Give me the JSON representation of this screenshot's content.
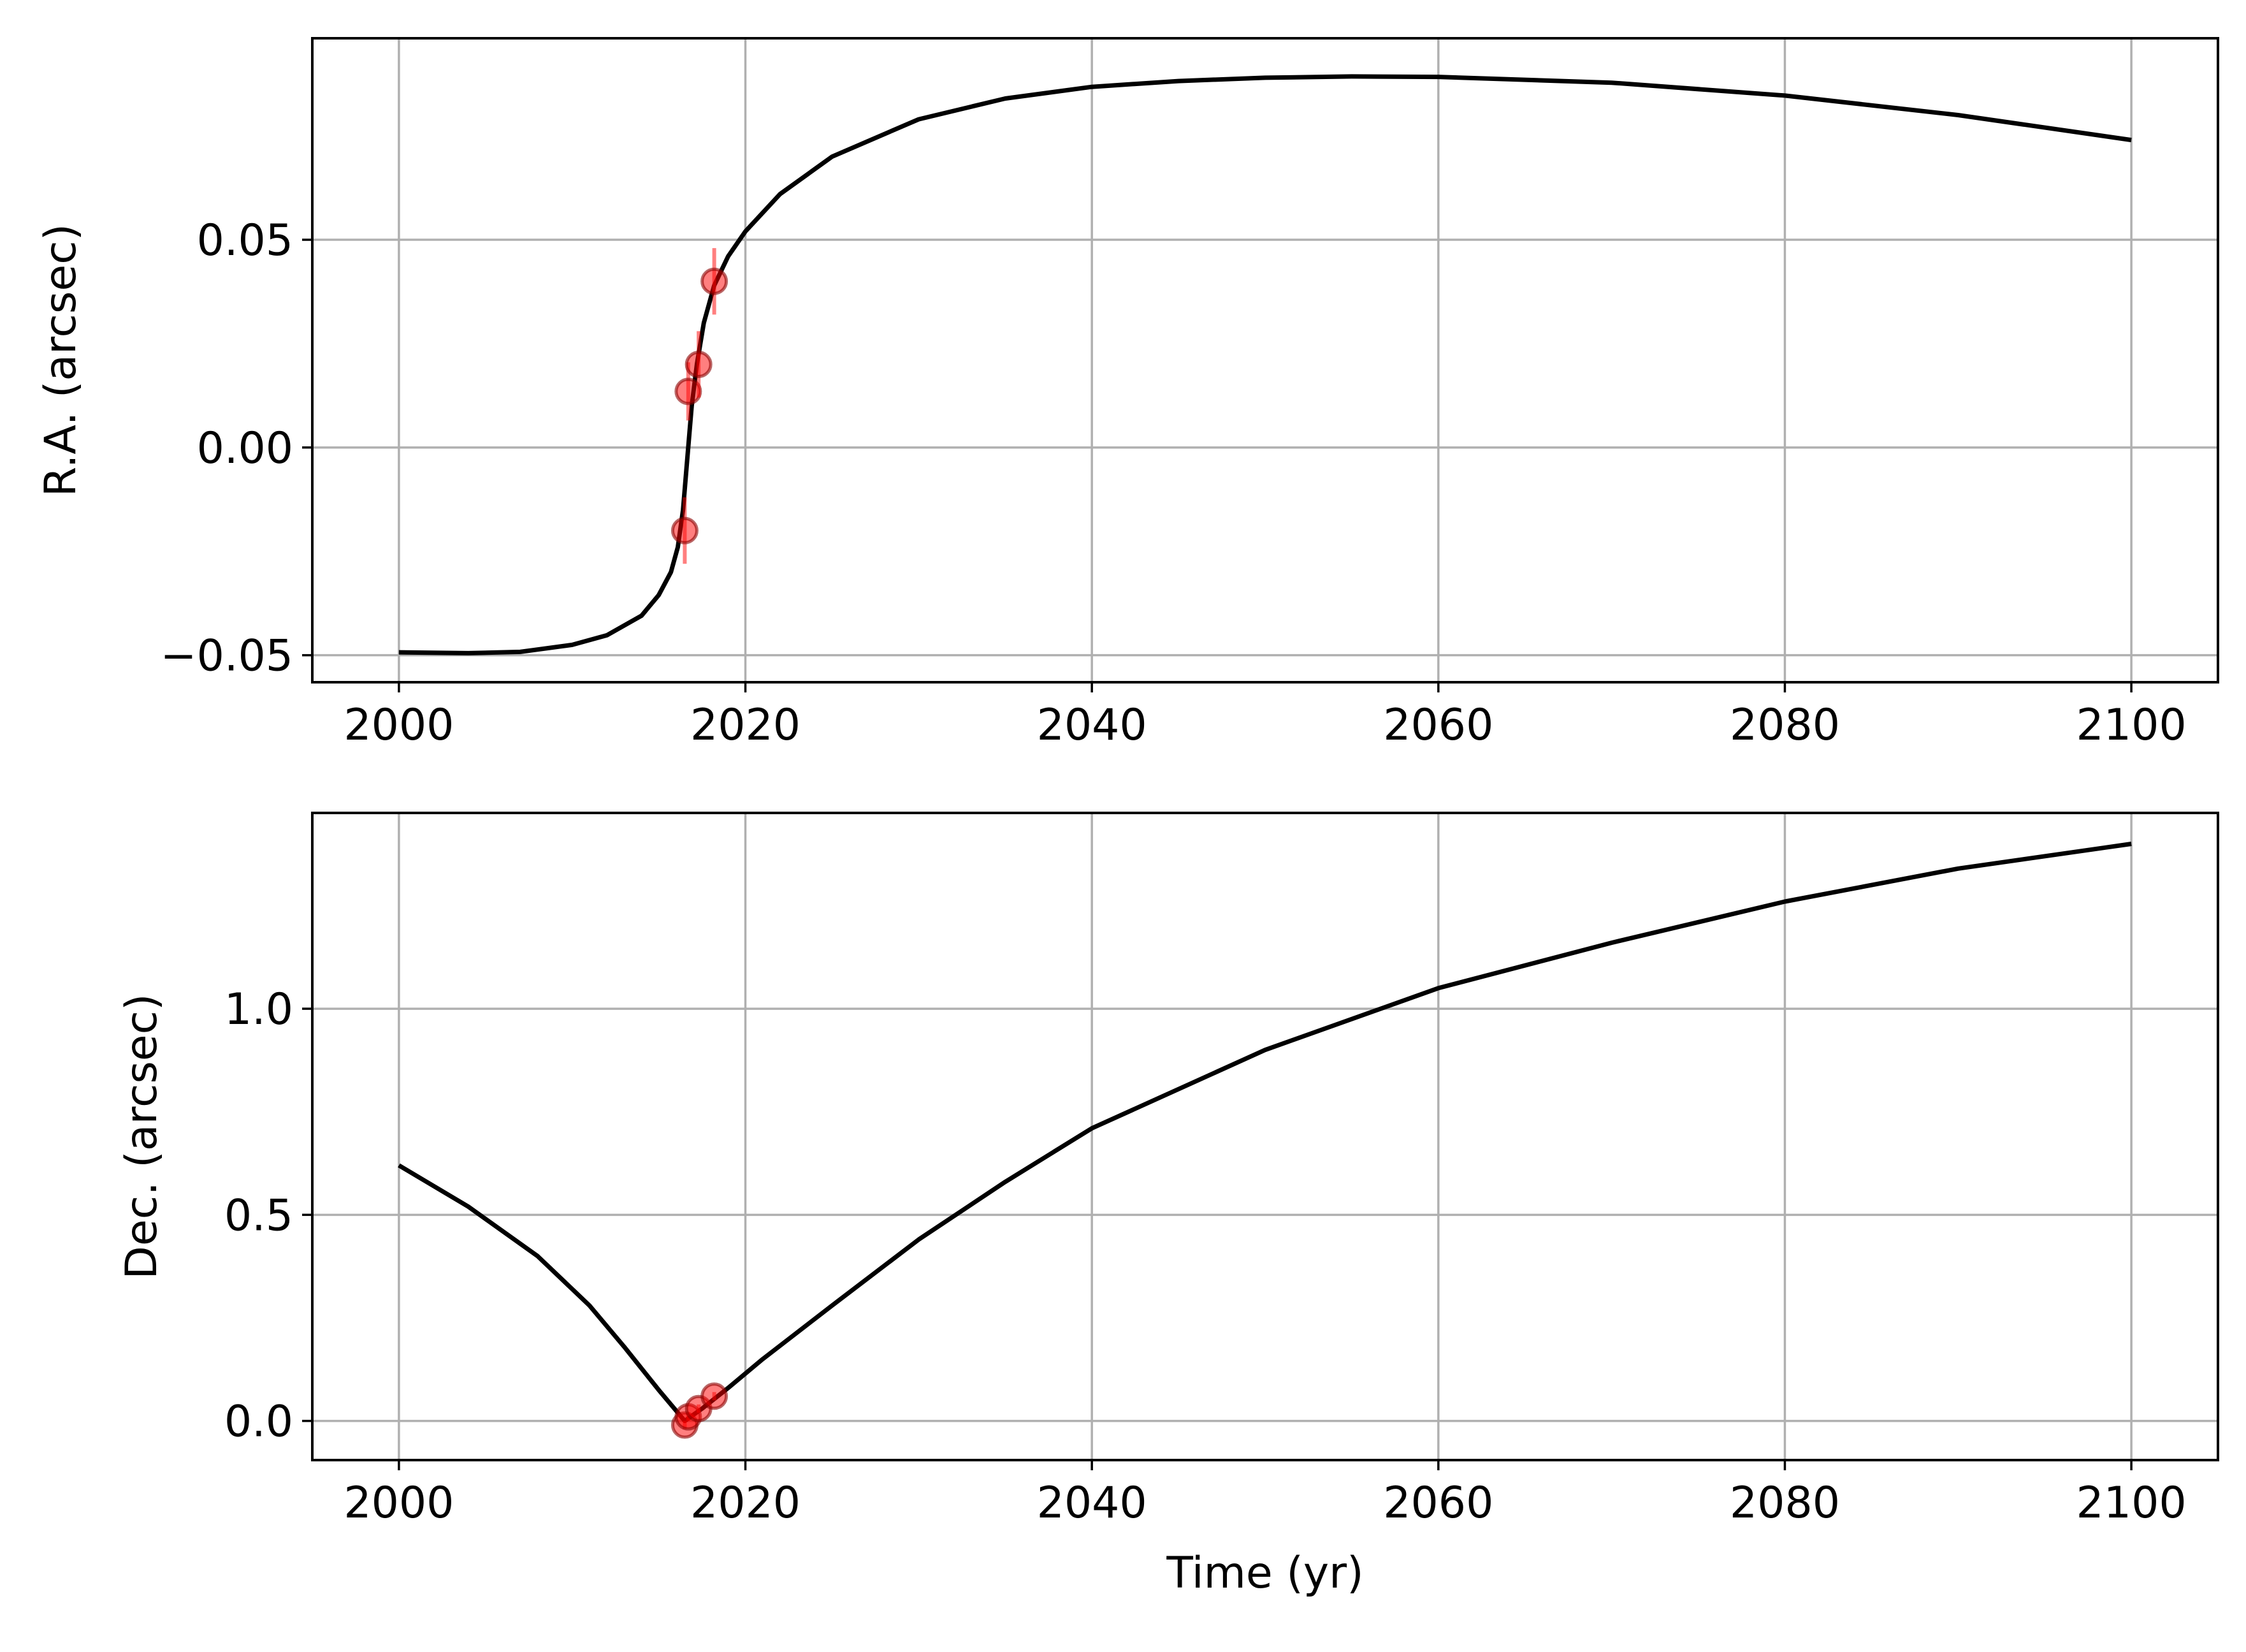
{
  "chart_data": [
    {
      "type": "line",
      "xlabel": "",
      "ylabel": "R.A. (arcsec)",
      "xlim": [
        1995,
        2105
      ],
      "ylim": [
        -0.0565,
        0.0985
      ],
      "grid": true,
      "xticks": [
        2000,
        2020,
        2040,
        2060,
        2080,
        2100
      ],
      "xtick_labels": [
        "2000",
        "2020",
        "2040",
        "2060",
        "2080",
        "2100"
      ],
      "yticks": [
        -0.05,
        0.0,
        0.05
      ],
      "ytick_labels": [
        "−0.05",
        "0.00",
        "0.05"
      ],
      "series": [
        {
          "kind": "line",
          "color": "#000000",
          "x": [
            2000,
            2004,
            2007,
            2010,
            2012,
            2014,
            2015,
            2015.7,
            2016.1,
            2016.4,
            2016.6,
            2016.9,
            2017.2,
            2017.6,
            2018.2,
            2019,
            2020,
            2022,
            2025,
            2030,
            2035,
            2040,
            2045,
            2050,
            2055,
            2060,
            2070,
            2080,
            2090,
            2100
          ],
          "y": [
            -0.0493,
            -0.0495,
            -0.0492,
            -0.0475,
            -0.0452,
            -0.0405,
            -0.0355,
            -0.03,
            -0.024,
            -0.015,
            -0.005,
            0.01,
            0.02,
            0.03,
            0.039,
            0.046,
            0.052,
            0.061,
            0.07,
            0.079,
            0.084,
            0.0868,
            0.0882,
            0.089,
            0.0893,
            0.0892,
            0.0878,
            0.0847,
            0.08,
            0.074
          ]
        },
        {
          "kind": "points",
          "color": "#ff0000",
          "x": [
            2016.5,
            2016.7,
            2017.3,
            2018.2
          ],
          "y": [
            -0.02,
            0.0135,
            0.02,
            0.04
          ],
          "yerr": [
            0.008,
            0.007,
            0.008,
            0.008
          ]
        }
      ]
    },
    {
      "type": "line",
      "xlabel": "Time (yr)",
      "ylabel": "Dec. (arcsec)",
      "xlim": [
        1995,
        2105
      ],
      "ylim": [
        -0.095,
        1.475
      ],
      "grid": true,
      "xticks": [
        2000,
        2020,
        2040,
        2060,
        2080,
        2100
      ],
      "xtick_labels": [
        "2000",
        "2020",
        "2040",
        "2060",
        "2080",
        "2100"
      ],
      "yticks": [
        0.0,
        0.5,
        1.0
      ],
      "ytick_labels": [
        "0.0",
        "0.5",
        "1.0"
      ],
      "series": [
        {
          "kind": "line",
          "color": "#000000",
          "x": [
            2000,
            2004,
            2008,
            2011,
            2013,
            2015,
            2016.5,
            2017.5,
            2019,
            2021,
            2025,
            2030,
            2035,
            2040,
            2050,
            2060,
            2070,
            2080,
            2090,
            2100
          ],
          "y": [
            0.62,
            0.52,
            0.4,
            0.28,
            0.18,
            0.075,
            0.0,
            0.03,
            0.08,
            0.15,
            0.28,
            0.44,
            0.58,
            0.71,
            0.9,
            1.05,
            1.16,
            1.26,
            1.34,
            1.4
          ]
        },
        {
          "kind": "points",
          "color": "#ff0000",
          "x": [
            2016.5,
            2016.7,
            2017.3,
            2018.2
          ],
          "y": [
            -0.01,
            0.01,
            0.03,
            0.06
          ],
          "yerr": [
            0.01,
            0.01,
            0.01,
            0.01
          ]
        }
      ]
    }
  ]
}
